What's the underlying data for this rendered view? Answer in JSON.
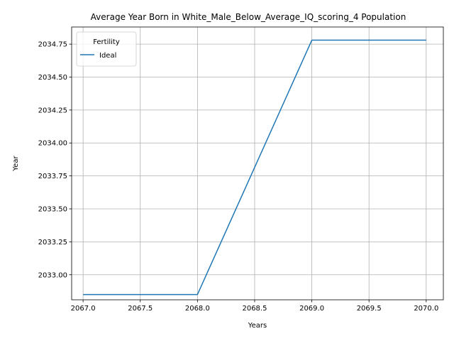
{
  "chart_data": {
    "type": "line",
    "title": "Average Year Born in White_Male_Below_Average_IQ_scoring_4 Population",
    "xlabel": "Years",
    "ylabel": "Year",
    "xlim": [
      2066.9,
      2070.15
    ],
    "ylim": [
      2032.81,
      2034.88
    ],
    "xticks": [
      2067.0,
      2067.5,
      2068.0,
      2068.5,
      2069.0,
      2069.5,
      2070.0
    ],
    "xtick_labels": [
      "2067.0",
      "2067.5",
      "2068.0",
      "2068.5",
      "2069.0",
      "2069.5",
      "2070.0"
    ],
    "yticks": [
      2033.0,
      2033.25,
      2033.5,
      2033.75,
      2034.0,
      2034.25,
      2034.5,
      2034.75
    ],
    "ytick_labels": [
      "2033.00",
      "2033.25",
      "2033.50",
      "2033.75",
      "2034.00",
      "2034.25",
      "2034.50",
      "2034.75"
    ],
    "grid": true,
    "legend": {
      "title": "Fertility",
      "placement": "top-left"
    },
    "series": [
      {
        "name": "Ideal",
        "color": "#1f77b4",
        "x": [
          2067,
          2068,
          2069,
          2070
        ],
        "y": [
          2032.85,
          2032.85,
          2034.78,
          2034.78
        ]
      }
    ]
  }
}
